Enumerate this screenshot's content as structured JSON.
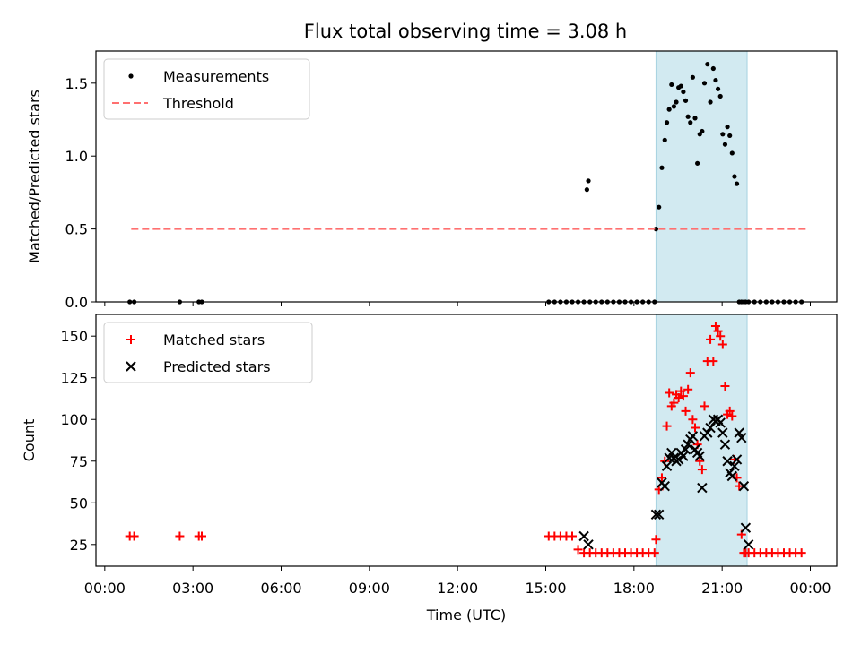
{
  "title": "Flux total observing time = 3.08 h",
  "chart_data": [
    {
      "type": "scatter",
      "panel": "top",
      "title": "Flux total observing time = 3.08 h",
      "xlabel": "",
      "ylabel": "Matched/Predicted stars",
      "xlim": [
        -0.3,
        24.9
      ],
      "ylim": [
        0,
        1.72
      ],
      "yticks": [
        0.0,
        0.5,
        1.0,
        1.5
      ],
      "ytick_labels": [
        "0.0",
        "0.5",
        "1.0",
        "1.5"
      ],
      "grid": false,
      "legend_position": "upper-left",
      "highlight_span": [
        18.75,
        21.85
      ],
      "series": [
        {
          "name": "Measurements",
          "marker": "dot",
          "color": "#000000",
          "x": [
            0.85,
            1.0,
            2.55,
            3.2,
            3.3,
            15.1,
            15.3,
            15.5,
            15.7,
            15.9,
            16.1,
            16.3,
            16.5,
            16.7,
            16.9,
            17.1,
            17.3,
            17.5,
            17.7,
            17.9,
            18.1,
            18.3,
            18.5,
            18.7,
            16.4,
            16.45,
            18.75,
            18.85,
            18.95,
            19.05,
            19.12,
            19.2,
            19.28,
            19.36,
            19.44,
            19.52,
            19.6,
            19.68,
            19.76,
            19.84,
            19.92,
            20.0,
            20.08,
            20.16,
            20.24,
            20.32,
            20.4,
            20.5,
            20.6,
            20.7,
            20.78,
            20.86,
            20.94,
            21.02,
            21.1,
            21.18,
            21.26,
            21.34,
            21.42,
            21.5,
            21.58,
            21.66,
            21.74,
            21.8,
            21.9,
            22.1,
            22.3,
            22.5,
            22.7,
            22.9,
            23.1,
            23.3,
            23.5,
            23.7
          ],
          "y": [
            0,
            0,
            0,
            0,
            0,
            0,
            0,
            0,
            0,
            0,
            0,
            0,
            0,
            0,
            0,
            0,
            0,
            0,
            0,
            0,
            0,
            0,
            0,
            0,
            0.77,
            0.83,
            0.5,
            0.65,
            0.92,
            1.11,
            1.23,
            1.32,
            1.49,
            1.34,
            1.37,
            1.47,
            1.48,
            1.44,
            1.38,
            1.27,
            1.23,
            1.54,
            1.26,
            0.95,
            1.15,
            1.17,
            1.5,
            1.63,
            1.37,
            1.6,
            1.52,
            1.46,
            1.41,
            1.15,
            1.08,
            1.2,
            1.14,
            1.02,
            0.86,
            0.81,
            0,
            0,
            0,
            0,
            0,
            0,
            0,
            0,
            0,
            0,
            0,
            0,
            0,
            0
          ]
        },
        {
          "name": "Threshold",
          "line_style": "dashed",
          "color": "#ff7070",
          "x": [
            0.9,
            23.9
          ],
          "y": [
            0.5,
            0.5
          ]
        }
      ]
    },
    {
      "type": "scatter",
      "panel": "bottom",
      "xlabel": "Time (UTC)",
      "ylabel": "Count",
      "xlim": [
        -0.3,
        24.9
      ],
      "ylim": [
        12,
        163
      ],
      "yticks": [
        25,
        50,
        75,
        100,
        125,
        150
      ],
      "ytick_labels": [
        "25",
        "50",
        "75",
        "100",
        "125",
        "150"
      ],
      "xticks": [
        0,
        3,
        6,
        9,
        12,
        15,
        18,
        21,
        24
      ],
      "xtick_labels": [
        "00:00",
        "03:00",
        "06:00",
        "09:00",
        "12:00",
        "15:00",
        "18:00",
        "21:00",
        "00:00"
      ],
      "grid": false,
      "legend_position": "upper-left",
      "highlight_span": [
        18.75,
        21.85
      ],
      "series": [
        {
          "name": "Matched stars",
          "marker": "plus",
          "color": "#ff0000",
          "x": [
            0.85,
            1.0,
            2.55,
            3.2,
            3.3,
            15.1,
            15.3,
            15.5,
            15.7,
            15.9,
            16.1,
            16.3,
            16.5,
            16.7,
            16.9,
            17.1,
            17.3,
            17.5,
            17.7,
            17.9,
            18.1,
            18.3,
            18.5,
            18.7,
            18.75,
            18.85,
            18.95,
            19.05,
            19.12,
            19.2,
            19.28,
            19.36,
            19.44,
            19.52,
            19.6,
            19.68,
            19.76,
            19.84,
            19.92,
            20.0,
            20.08,
            20.16,
            20.24,
            20.32,
            20.4,
            20.5,
            20.6,
            20.7,
            20.78,
            20.86,
            20.94,
            21.02,
            21.1,
            21.18,
            21.26,
            21.34,
            21.42,
            21.5,
            21.58,
            21.66,
            21.74,
            21.8,
            21.9,
            22.1,
            22.3,
            22.5,
            22.7,
            22.9,
            23.1,
            23.3,
            23.5,
            23.7
          ],
          "y": [
            30,
            30,
            30,
            30,
            30,
            30,
            30,
            30,
            30,
            30,
            22,
            20,
            20,
            20,
            20,
            20,
            20,
            20,
            20,
            20,
            20,
            20,
            20,
            20,
            28,
            58,
            65,
            75,
            96,
            116,
            108,
            110,
            115,
            113,
            117,
            114,
            105,
            118,
            128,
            100,
            95,
            85,
            75,
            70,
            108,
            135,
            148,
            135,
            156,
            153,
            150,
            145,
            120,
            103,
            105,
            102,
            76,
            65,
            60,
            31,
            20,
            20,
            20,
            20,
            20,
            20,
            20,
            20,
            20,
            20,
            20,
            20
          ]
        },
        {
          "name": "Predicted stars",
          "marker": "x",
          "color": "#000000",
          "x": [
            16.3,
            16.45,
            18.75,
            18.85,
            18.95,
            19.05,
            19.12,
            19.2,
            19.28,
            19.36,
            19.44,
            19.52,
            19.6,
            19.68,
            19.76,
            19.84,
            19.92,
            20.0,
            20.08,
            20.16,
            20.24,
            20.32,
            20.4,
            20.5,
            20.6,
            20.7,
            20.78,
            20.86,
            20.94,
            21.02,
            21.1,
            21.18,
            21.26,
            21.34,
            21.42,
            21.5,
            21.58,
            21.66,
            21.74,
            21.8,
            21.9
          ],
          "y": [
            30,
            25,
            43,
            43,
            62,
            60,
            72,
            77,
            80,
            77,
            75,
            76,
            80,
            78,
            82,
            85,
            88,
            90,
            82,
            80,
            78,
            59,
            90,
            92,
            95,
            100,
            99,
            100,
            98,
            92,
            85,
            75,
            68,
            66,
            72,
            76,
            92,
            89,
            60,
            35,
            25
          ]
        }
      ]
    }
  ]
}
